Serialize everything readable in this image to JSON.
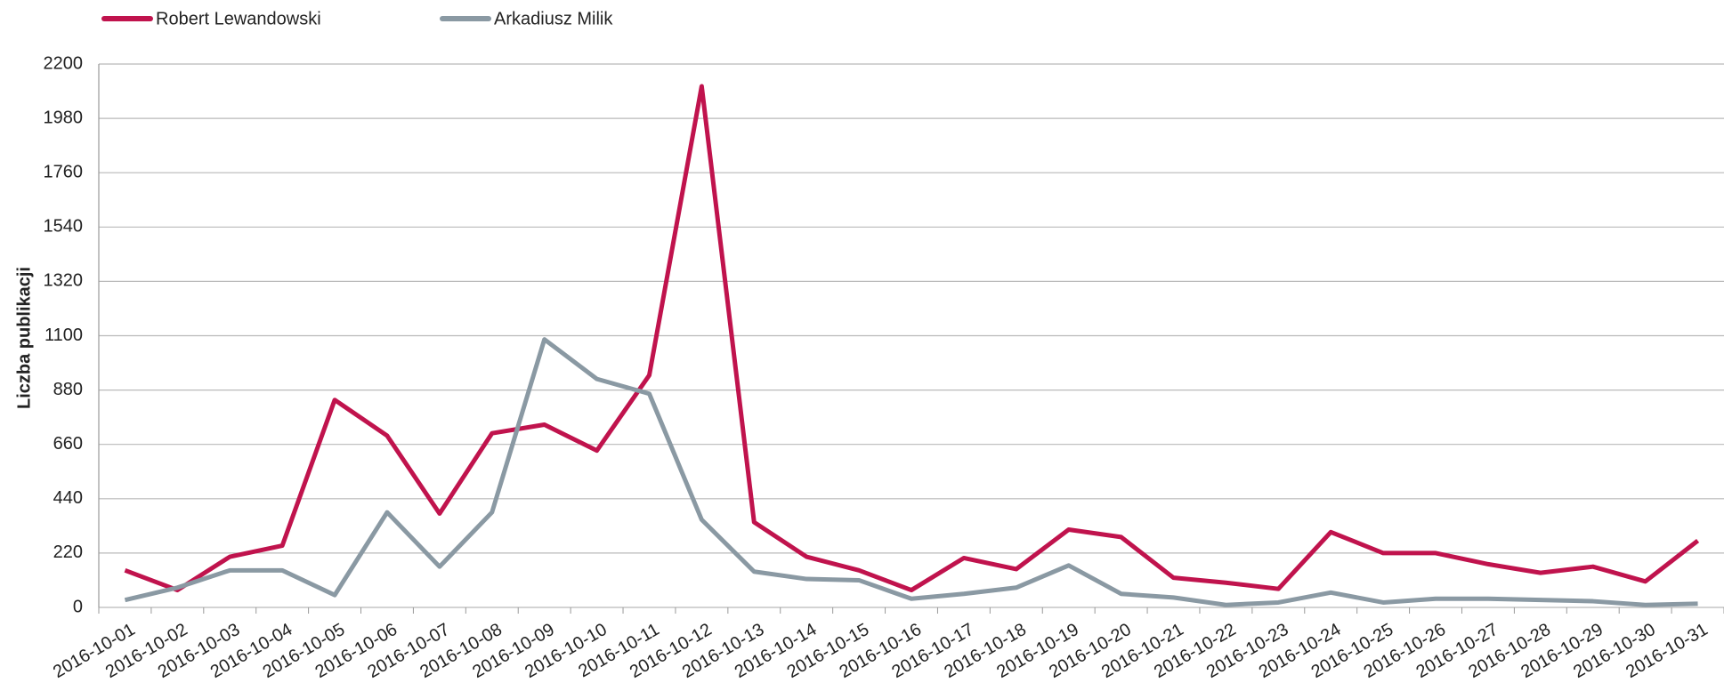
{
  "chart_data": {
    "type": "line",
    "y_label": "Liczba publikacji",
    "categories": [
      "2016-10-01",
      "2016-10-02",
      "2016-10-03",
      "2016-10-04",
      "2016-10-05",
      "2016-10-06",
      "2016-10-07",
      "2016-10-08",
      "2016-10-09",
      "2016-10-10",
      "2016-10-11",
      "2016-10-12",
      "2016-10-13",
      "2016-10-14",
      "2016-10-15",
      "2016-10-16",
      "2016-10-17",
      "2016-10-18",
      "2016-10-19",
      "2016-10-20",
      "2016-10-21",
      "2016-10-22",
      "2016-10-23",
      "2016-10-24",
      "2016-10-25",
      "2016-10-26",
      "2016-10-27",
      "2016-10-28",
      "2016-10-29",
      "2016-10-30",
      "2016-10-31"
    ],
    "series": [
      {
        "name": "Robert Lewandowski",
        "color": "#c0134d",
        "values": [
          150,
          70,
          205,
          250,
          840,
          695,
          380,
          705,
          740,
          635,
          940,
          2110,
          345,
          205,
          150,
          70,
          200,
          155,
          315,
          285,
          120,
          100,
          75,
          305,
          220,
          220,
          175,
          140,
          165,
          105,
          270
        ]
      },
      {
        "name": "Arkadiusz Milik",
        "color": "#8a99a3",
        "values": [
          30,
          80,
          150,
          150,
          50,
          385,
          165,
          385,
          1085,
          925,
          865,
          355,
          145,
          115,
          110,
          35,
          55,
          80,
          170,
          55,
          40,
          10,
          20,
          60,
          20,
          35,
          35,
          30,
          25,
          10,
          15
        ]
      }
    ],
    "ylim": [
      0,
      2200
    ],
    "yticks": [
      0,
      220,
      440,
      660,
      880,
      1100,
      1320,
      1540,
      1760,
      1980,
      2200
    ],
    "grid": true,
    "legend": "top-left"
  }
}
